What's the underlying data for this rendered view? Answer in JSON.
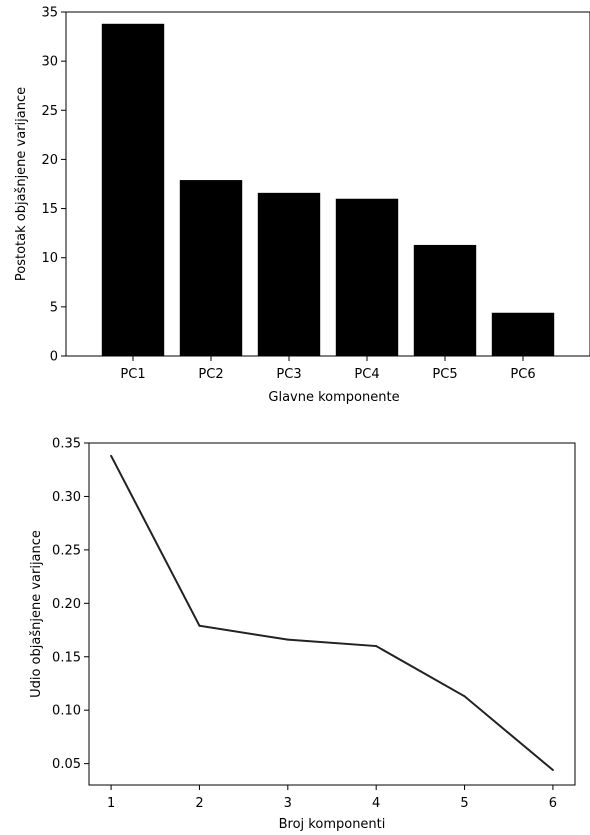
{
  "chart_data": [
    {
      "type": "bar",
      "categories": [
        "PC1",
        "PC2",
        "PC3",
        "PC4",
        "PC5",
        "PC6"
      ],
      "values": [
        33.8,
        17.9,
        16.6,
        16.0,
        11.3,
        4.4
      ],
      "xlabel": "Glavne komponente",
      "ylabel": "Postotak objašnjene varijance",
      "ylim": [
        0,
        35
      ],
      "yticks": [
        0,
        5,
        10,
        15,
        20,
        25,
        30,
        35
      ],
      "bar_color": "#000000",
      "grid": false
    },
    {
      "type": "line",
      "x": [
        1,
        2,
        3,
        4,
        5,
        6
      ],
      "y": [
        0.338,
        0.179,
        0.166,
        0.16,
        0.113,
        0.044
      ],
      "xlabel": "Broj komponenti",
      "ylabel": "Udio objašnjene varijance",
      "xlim": [
        0.75,
        6.25
      ],
      "ylim": [
        0.03,
        0.35
      ],
      "xticks": [
        "1",
        "2",
        "3",
        "4",
        "5",
        "6"
      ],
      "yticks": [
        "0.05",
        "0.10",
        "0.15",
        "0.20",
        "0.25",
        "0.30",
        "0.35"
      ],
      "line_color": "#222222",
      "grid": false
    }
  ]
}
